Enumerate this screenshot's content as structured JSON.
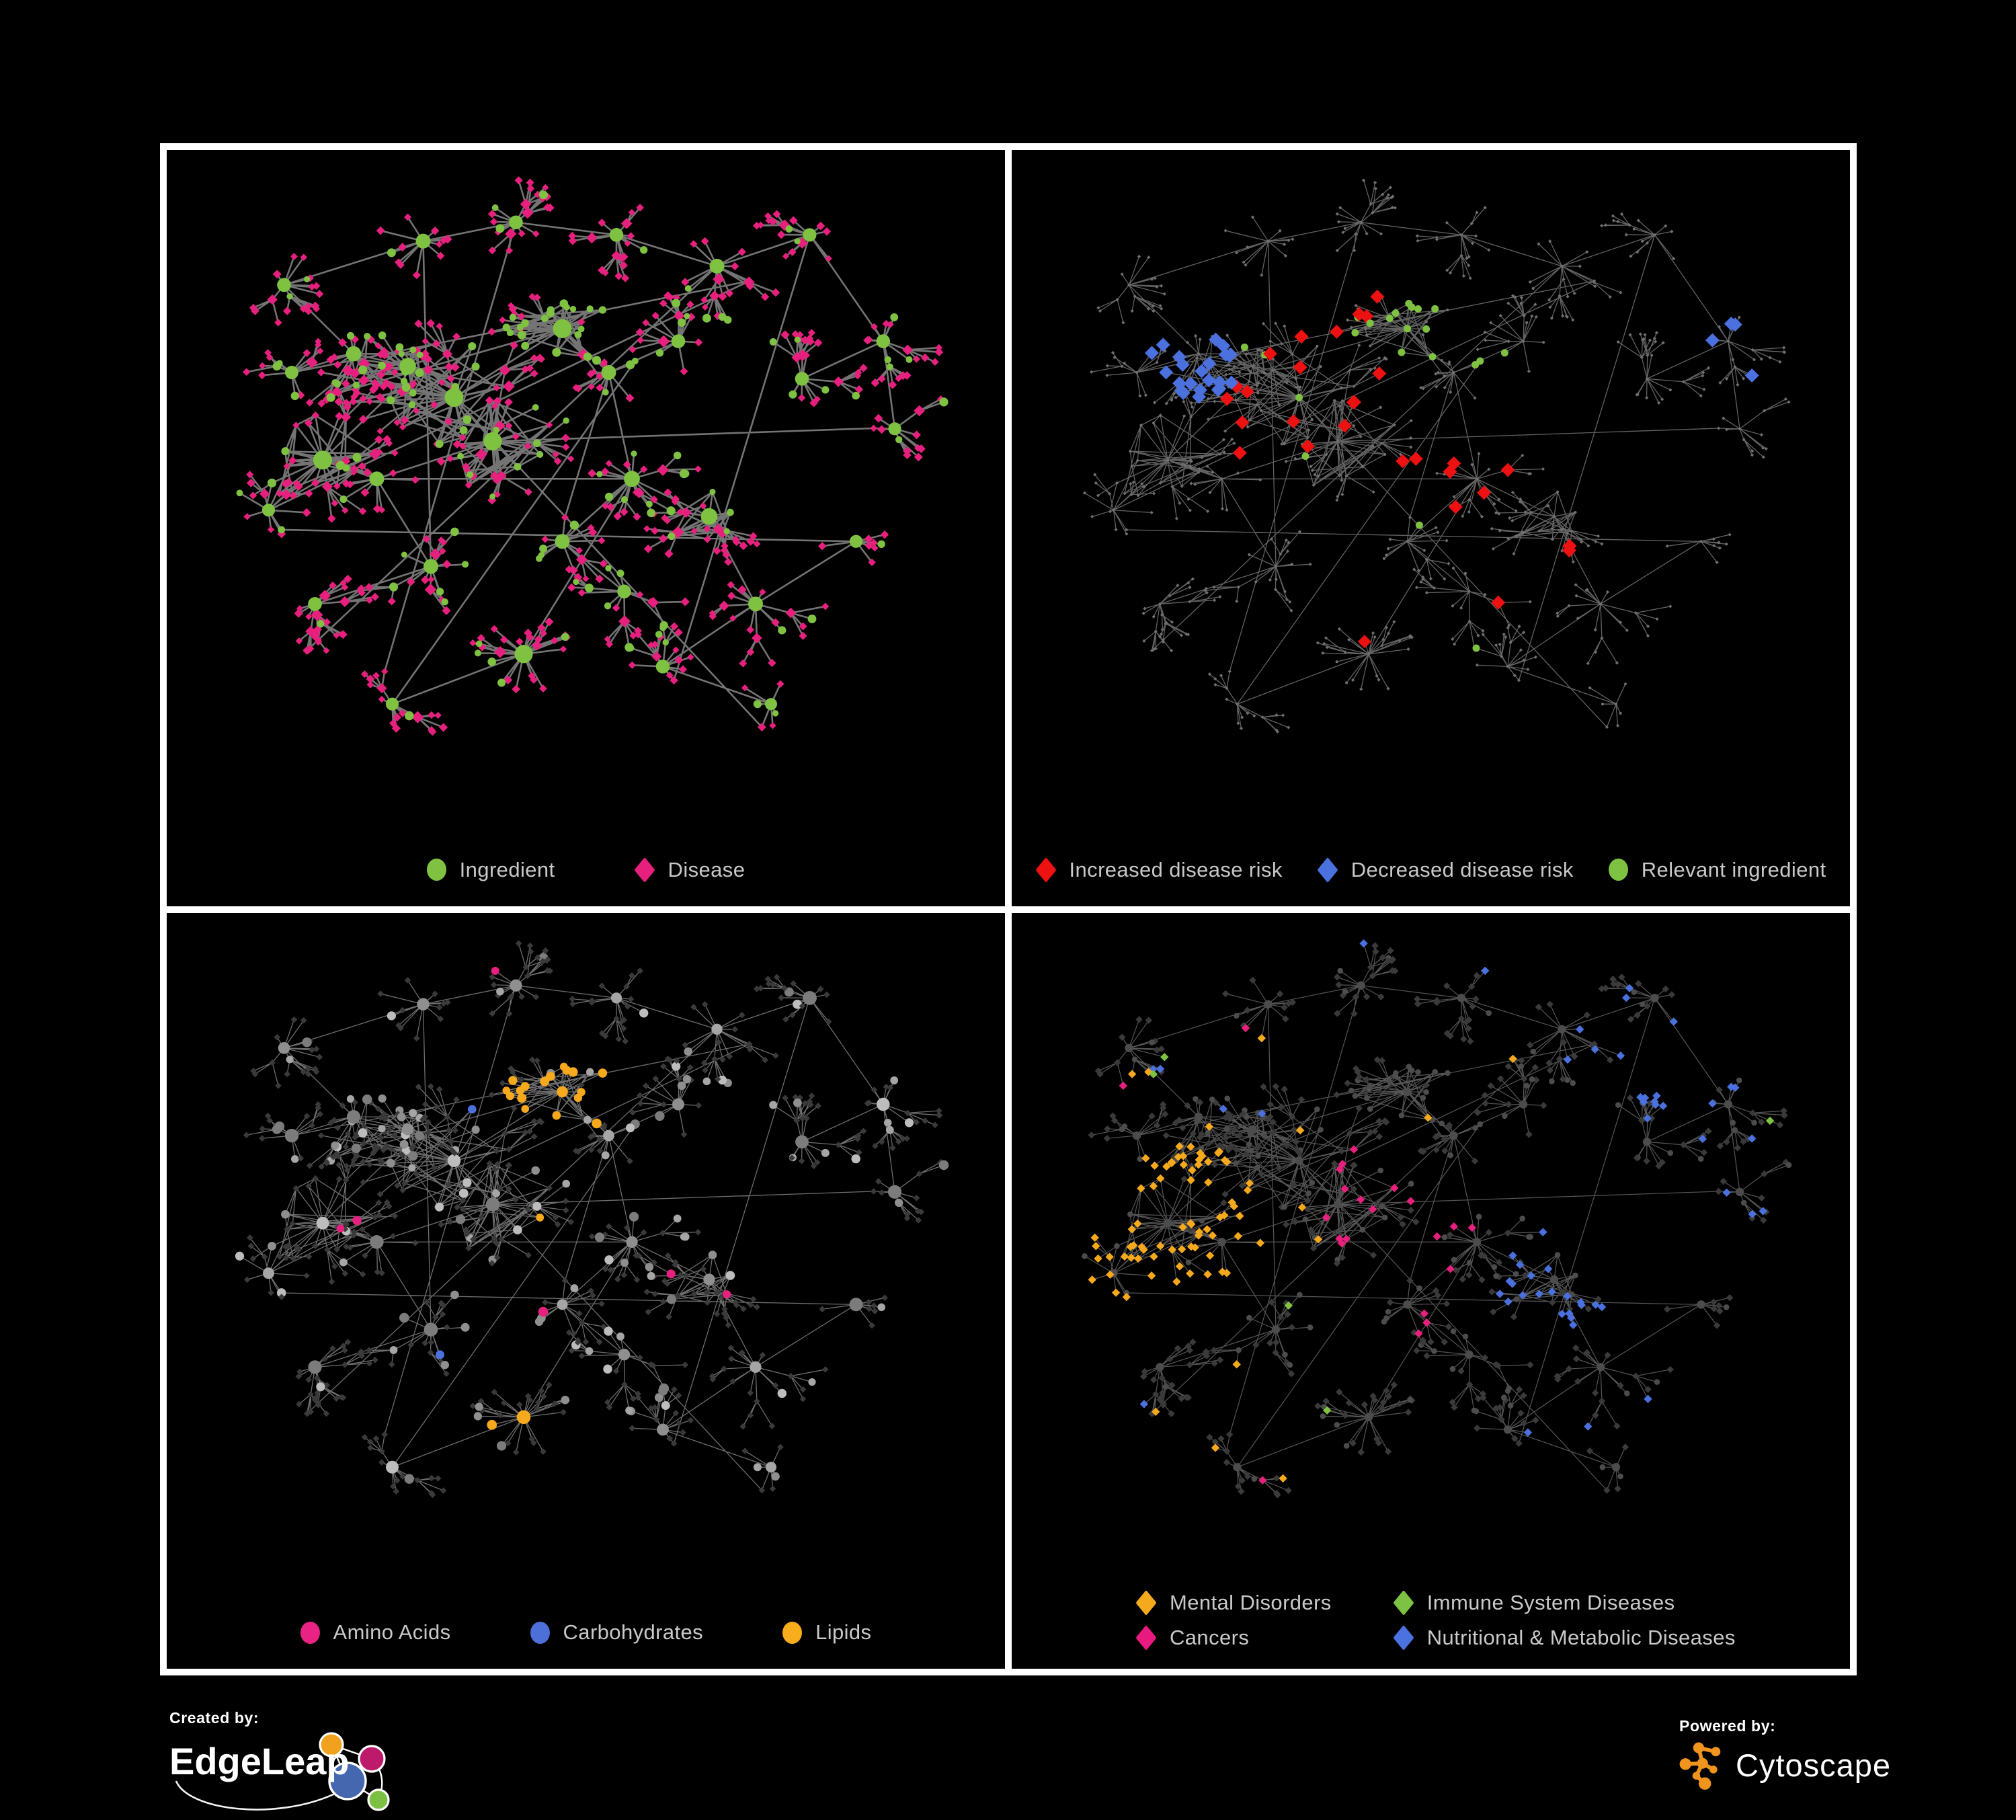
{
  "panels": [
    {
      "name": "ingredient-disease",
      "legend": [
        {
          "shape": "circle",
          "color": "#7FC241",
          "label": "Ingredient"
        },
        {
          "shape": "diamond",
          "color": "#E7207E",
          "label": "Disease"
        }
      ]
    },
    {
      "name": "disease-risk",
      "legend": [
        {
          "shape": "diamond",
          "color": "#ED1111",
          "label": "Increased disease risk"
        },
        {
          "shape": "diamond",
          "color": "#4A71DE",
          "label": "Decreased disease risk"
        },
        {
          "shape": "circle",
          "color": "#7DC242",
          "label": "Relevant ingredient"
        }
      ]
    },
    {
      "name": "ingredient-classes",
      "legend": [
        {
          "shape": "circle",
          "color": "#E82383",
          "label": "Amino Acids"
        },
        {
          "shape": "circle",
          "color": "#4C6FD8",
          "label": "Carbohydrates"
        },
        {
          "shape": "circle",
          "color": "#F8AD1D",
          "label": "Lipids"
        }
      ]
    },
    {
      "name": "disease-categories",
      "legend": [
        {
          "shape": "diamond",
          "color": "#F5A91C",
          "label": "Mental Disorders"
        },
        {
          "shape": "diamond",
          "color": "#E8197F",
          "label": "Cancers"
        },
        {
          "shape": "diamond",
          "color": "#7DC242",
          "label": "Immune System Diseases"
        },
        {
          "shape": "diamond",
          "color": "#4A72E0",
          "label": "Nutritional & Metabolic Diseases"
        }
      ]
    }
  ],
  "footer": {
    "created_by": "Created by:",
    "brand": "EdgeLeap",
    "powered_by": "Powered by:",
    "engine": "Cytoscape"
  },
  "network": {
    "palette": {
      "green": "#7FC241",
      "pink": "#E7207E",
      "red": "#ED1111",
      "blue": "#4A71DE",
      "amber": "#F6A91D",
      "grayHi": "#BDBDBD",
      "dot": "#707070",
      "dark": "#3A3A3A",
      "darkC": "#4C4C4C",
      "g1": "#A6A6A6",
      "g2": "#8F8F8F",
      "g3": "#BDBDBD",
      "g4": "#7C7C7C"
    },
    "edge_styles": [
      {
        "color": "#7A7A7A",
        "width": 2.6,
        "opacity": 0.95
      },
      {
        "color": "#626262",
        "width": 1.3,
        "opacity": 1.0
      },
      {
        "color": "#9C9C9C",
        "width": 1.3,
        "opacity": 0.7
      },
      {
        "color": "#9C9C9C",
        "width": 1.2,
        "opacity": 0.55
      }
    ],
    "logo_colors": {
      "edgeleap_orange": "#F0A11E",
      "edgeleap_pink": "#BE1A6B",
      "edgeleap_blue": "#4467B0",
      "edgeleap_green": "#7CC043",
      "cytoscape_orange": "#F0941E"
    }
  }
}
